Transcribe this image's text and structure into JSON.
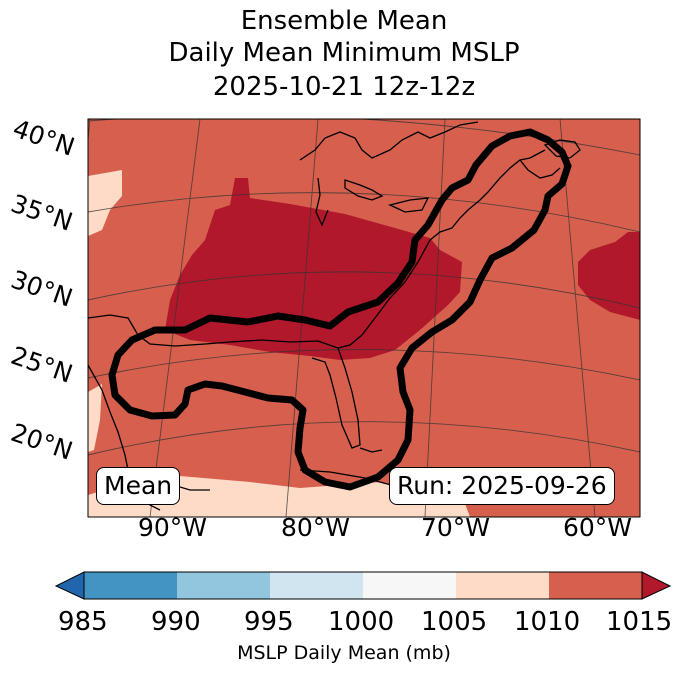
{
  "title": {
    "line1": "Ensemble Mean",
    "line2": "Daily Mean Minimum MSLP",
    "line3": "2025-10-21 12z-12z"
  },
  "map": {
    "lat_labels": [
      "40°N",
      "35°N",
      "30°N",
      "25°N",
      "20°N"
    ],
    "lon_labels": [
      "90°W",
      "80°W",
      "70°W",
      "60°W"
    ],
    "box_left": "Mean",
    "box_right": "Run: 2025-09-26",
    "colors": {
      "c1010_1015": "#d6604d",
      "c1015_plus": "#b2182b",
      "c1005_1010": "#fddbc7",
      "land": "#000000",
      "contour": "#000000"
    }
  },
  "colorbar": {
    "ticks": [
      "985",
      "990",
      "995",
      "1000",
      "1005",
      "1010",
      "1015"
    ],
    "colors": [
      "#2166ac",
      "#4393c3",
      "#92c5de",
      "#d1e5f0",
      "#f7f7f7",
      "#fddbc7",
      "#d6604d",
      "#b2182b"
    ],
    "label": "MSLP Daily Mean (mb)"
  }
}
